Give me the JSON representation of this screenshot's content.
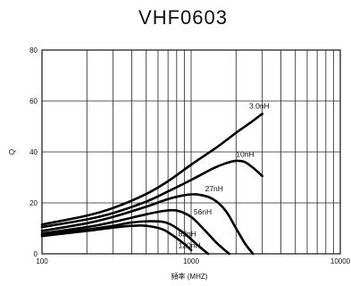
{
  "chart_data": {
    "type": "line",
    "title": "VHF0603",
    "xlabel": "頻率 (MHZ)",
    "ylabel": "Q",
    "x_scale": "log",
    "xlim": [
      100,
      10000
    ],
    "ylim": [
      0,
      80
    ],
    "x_ticks": [
      "100",
      "1000",
      "10000"
    ],
    "y_ticks": [
      "0",
      "20",
      "40",
      "60",
      "80"
    ],
    "grid": true,
    "series": [
      {
        "name": "3.0nH",
        "x": [
          100,
          200,
          300,
          500,
          700,
          1000,
          1500,
          2000,
          2500,
          3000
        ],
        "y": [
          11.5,
          15,
          18,
          23.5,
          28.5,
          35,
          42,
          47.5,
          51.5,
          55
        ]
      },
      {
        "name": "10nH",
        "x": [
          100,
          200,
          300,
          500,
          700,
          1000,
          1400,
          1700,
          2000,
          2300,
          2700,
          3000
        ],
        "y": [
          10.5,
          13.5,
          16,
          20.5,
          24.5,
          29,
          33.5,
          35.5,
          36.5,
          36,
          33,
          30.5
        ]
      },
      {
        "name": "27nH",
        "x": [
          100,
          200,
          300,
          500,
          700,
          900,
          1100,
          1400,
          1700,
          2000,
          2300,
          2600
        ],
        "y": [
          9,
          12,
          14.5,
          18.5,
          21.5,
          23,
          23.3,
          21.5,
          17,
          10,
          4,
          0
        ]
      },
      {
        "name": "56nH",
        "x": [
          100,
          200,
          300,
          500,
          650,
          800,
          1000,
          1200,
          1500,
          1800
        ],
        "y": [
          8,
          10.5,
          12.5,
          15.5,
          16.8,
          17,
          14.5,
          10,
          4,
          0
        ]
      },
      {
        "name": "82nH",
        "x": [
          100,
          200,
          300,
          400,
          550,
          700,
          900,
          1100,
          1300
        ],
        "y": [
          7.5,
          9.5,
          11,
          12.3,
          12.8,
          12,
          8,
          3.5,
          0
        ]
      },
      {
        "name": "120nH",
        "x": [
          100,
          200,
          300,
          400,
          500,
          650,
          850,
          1000
        ],
        "y": [
          7,
          9,
          10.3,
          11,
          11,
          9.5,
          5,
          1.5
        ]
      }
    ]
  }
}
